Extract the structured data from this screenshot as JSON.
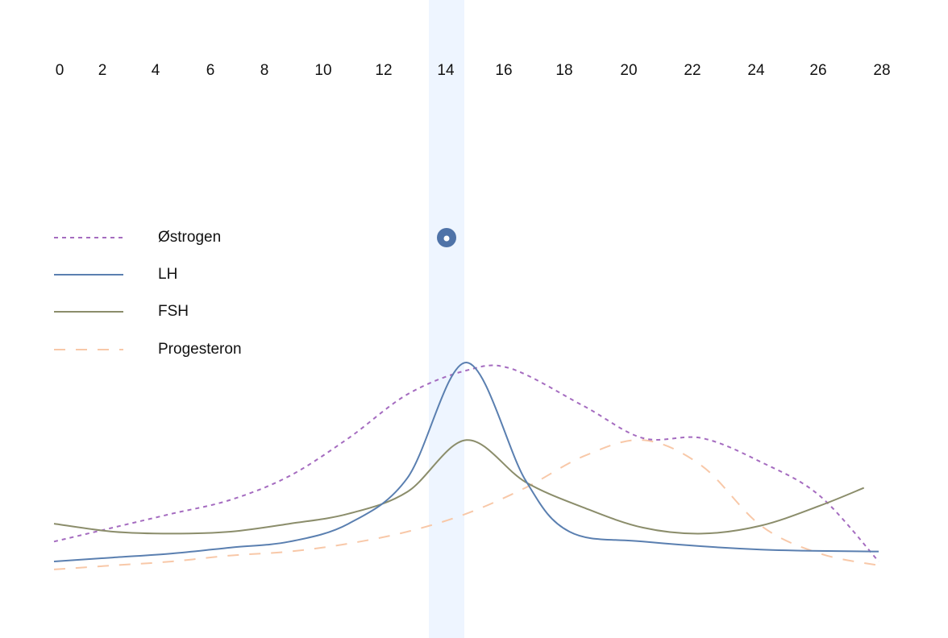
{
  "chart_data": {
    "type": "line",
    "xlim": [
      0,
      28
    ],
    "x_ticks": [
      "0",
      "2",
      "4",
      "6",
      "8",
      "10",
      "12",
      "14",
      "16",
      "18",
      "20",
      "22",
      "24",
      "26",
      "28"
    ],
    "highlight_x": 14,
    "ovulation_marker_day": 14,
    "grid": false,
    "legend_position": "left",
    "series": [
      {
        "name": "Østrogen",
        "color": "#a56cc0",
        "dash": "dotted",
        "points": [
          [
            0,
            0.1
          ],
          [
            2,
            0.17
          ],
          [
            4,
            0.24
          ],
          [
            6,
            0.31
          ],
          [
            8,
            0.43
          ],
          [
            10,
            0.62
          ],
          [
            12,
            0.84
          ],
          [
            14,
            0.96
          ],
          [
            15.5,
            0.97
          ],
          [
            18,
            0.78
          ],
          [
            20,
            0.62
          ],
          [
            22,
            0.62
          ],
          [
            24,
            0.5
          ],
          [
            26,
            0.33
          ],
          [
            28,
            0.0
          ]
        ]
      },
      {
        "name": "LH",
        "color": "#5a7fb0",
        "dash": "solid",
        "points": [
          [
            0,
            0.0
          ],
          [
            2,
            0.02
          ],
          [
            4,
            0.04
          ],
          [
            6,
            0.07
          ],
          [
            8,
            0.1
          ],
          [
            10,
            0.19
          ],
          [
            12,
            0.42
          ],
          [
            14,
            1.0
          ],
          [
            16,
            0.41
          ],
          [
            17.5,
            0.15
          ],
          [
            20,
            0.1
          ],
          [
            24,
            0.06
          ],
          [
            28,
            0.05
          ]
        ]
      },
      {
        "name": "FSH",
        "color": "#8b8d6b",
        "dash": "solid",
        "points": [
          [
            0,
            0.19
          ],
          [
            2,
            0.15
          ],
          [
            4,
            0.14
          ],
          [
            6,
            0.15
          ],
          [
            8,
            0.19
          ],
          [
            10,
            0.24
          ],
          [
            12,
            0.35
          ],
          [
            14,
            0.61
          ],
          [
            16,
            0.4
          ],
          [
            18,
            0.27
          ],
          [
            20,
            0.17
          ],
          [
            22,
            0.14
          ],
          [
            24,
            0.18
          ],
          [
            26,
            0.28
          ],
          [
            27.5,
            0.37
          ]
        ]
      },
      {
        "name": "Progesteron",
        "color": "#f8c8a8",
        "dash": "dashed",
        "points": [
          [
            0,
            -0.04
          ],
          [
            2,
            -0.02
          ],
          [
            4,
            0.0
          ],
          [
            6,
            0.03
          ],
          [
            8,
            0.05
          ],
          [
            10,
            0.09
          ],
          [
            12,
            0.15
          ],
          [
            14,
            0.24
          ],
          [
            16,
            0.37
          ],
          [
            18,
            0.53
          ],
          [
            20,
            0.61
          ],
          [
            22,
            0.48
          ],
          [
            24,
            0.18
          ],
          [
            26,
            0.04
          ],
          [
            28,
            -0.02
          ]
        ]
      }
    ]
  },
  "colors": {
    "highlight_band": "#eef5ff",
    "marker": "#4f73a8",
    "axis_text": "#111111"
  }
}
